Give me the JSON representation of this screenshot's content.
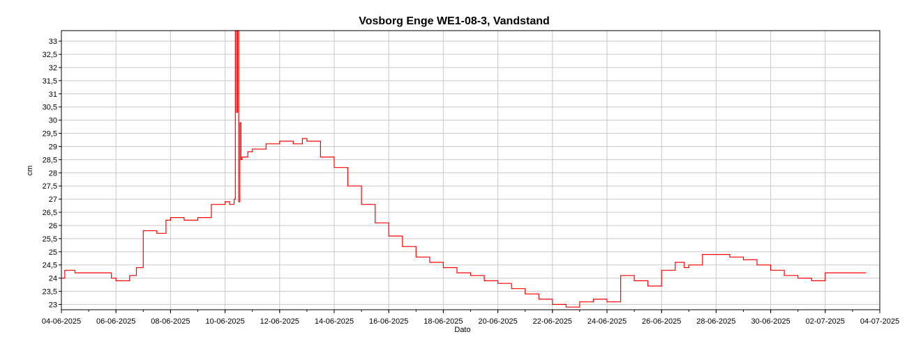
{
  "chart_data": {
    "type": "line",
    "title": "Vosborg Enge WE1-08-3, Vandstand",
    "xlabel": "Dato",
    "ylabel": "cm",
    "ylim": [
      22.8,
      33.4
    ],
    "xlim": [
      "2025-06-04",
      "2025-07-04"
    ],
    "grid": true,
    "x_ticks": [
      "04-06-2025",
      "06-06-2025",
      "08-06-2025",
      "10-06-2025",
      "12-06-2025",
      "14-06-2025",
      "16-06-2025",
      "18-06-2025",
      "20-06-2025",
      "22-06-2025",
      "24-06-2025",
      "26-06-2025",
      "28-06-2025",
      "30-06-2025",
      "02-07-2025",
      "04-07-2025"
    ],
    "y_ticks": [
      "23",
      "23,5",
      "24",
      "24,5",
      "25",
      "25,5",
      "26",
      "26,5",
      "27",
      "27,5",
      "28",
      "28,5",
      "29",
      "29,5",
      "30",
      "30,5",
      "31",
      "31,5",
      "32",
      "32,5",
      "33"
    ],
    "series": [
      {
        "color": "#ff0000",
        "x": [
          "2025-06-04",
          "2025-06-04T03:00",
          "2025-06-04T12:00",
          "2025-06-05",
          "2025-06-05T12:00",
          "2025-06-05T20:00",
          "2025-06-06",
          "2025-06-06T12:00",
          "2025-06-06T18:00",
          "2025-06-07",
          "2025-06-07T12:00",
          "2025-06-07T20:00",
          "2025-06-08",
          "2025-06-08T12:00",
          "2025-06-09",
          "2025-06-09T12:00",
          "2025-06-10",
          "2025-06-10T04:00",
          "2025-06-10T06:00",
          "2025-06-10T08:00",
          "2025-06-10T09:00",
          "2025-06-10T10:00",
          "2025-06-10T11:00",
          "2025-06-10T12:00",
          "2025-06-10T13:00",
          "2025-06-10T14:00",
          "2025-06-10T15:00",
          "2025-06-10T16:00",
          "2025-06-10T20:00",
          "2025-06-11",
          "2025-06-11T12:00",
          "2025-06-12",
          "2025-06-12T12:00",
          "2025-06-12T20:00",
          "2025-06-13",
          "2025-06-13T12:00",
          "2025-06-14",
          "2025-06-14T12:00",
          "2025-06-15",
          "2025-06-15T12:00",
          "2025-06-16",
          "2025-06-16T12:00",
          "2025-06-17",
          "2025-06-17T12:00",
          "2025-06-18",
          "2025-06-18T12:00",
          "2025-06-19",
          "2025-06-19T12:00",
          "2025-06-20",
          "2025-06-20T12:00",
          "2025-06-21",
          "2025-06-21T12:00",
          "2025-06-22",
          "2025-06-22T12:00",
          "2025-06-23",
          "2025-06-23T12:00",
          "2025-06-24",
          "2025-06-24T12:00",
          "2025-06-25",
          "2025-06-25T12:00",
          "2025-06-26",
          "2025-06-26T12:00",
          "2025-06-26T20:00",
          "2025-06-27",
          "2025-06-27T12:00",
          "2025-06-28",
          "2025-06-28T12:00",
          "2025-06-29",
          "2025-06-29T12:00",
          "2025-06-30",
          "2025-06-30T12:00",
          "2025-07-01",
          "2025-07-01T12:00",
          "2025-07-02",
          "2025-07-02T12:00",
          "2025-07-02T20:00",
          "2025-07-03",
          "2025-07-03T12:00"
        ],
        "y": [
          24.0,
          24.3,
          24.2,
          24.2,
          24.2,
          24.0,
          23.9,
          24.1,
          24.4,
          25.8,
          25.7,
          26.2,
          26.3,
          26.2,
          26.3,
          26.8,
          26.9,
          26.8,
          26.8,
          27.0,
          33.4,
          30.3,
          33.4,
          26.9,
          29.9,
          28.5,
          28.6,
          28.6,
          28.8,
          28.9,
          29.1,
          29.2,
          29.1,
          29.3,
          29.2,
          28.6,
          28.2,
          27.5,
          26.8,
          26.1,
          25.6,
          25.2,
          24.8,
          24.6,
          24.4,
          24.2,
          24.1,
          23.9,
          23.8,
          23.6,
          23.4,
          23.2,
          23.0,
          22.9,
          23.1,
          23.2,
          23.1,
          24.1,
          23.9,
          23.7,
          24.3,
          24.6,
          24.4,
          24.5,
          24.9,
          24.9,
          24.8,
          24.7,
          24.5,
          24.3,
          24.1,
          24.0,
          23.9,
          24.2,
          24.2,
          24.2,
          24.2,
          24.2
        ]
      }
    ]
  }
}
